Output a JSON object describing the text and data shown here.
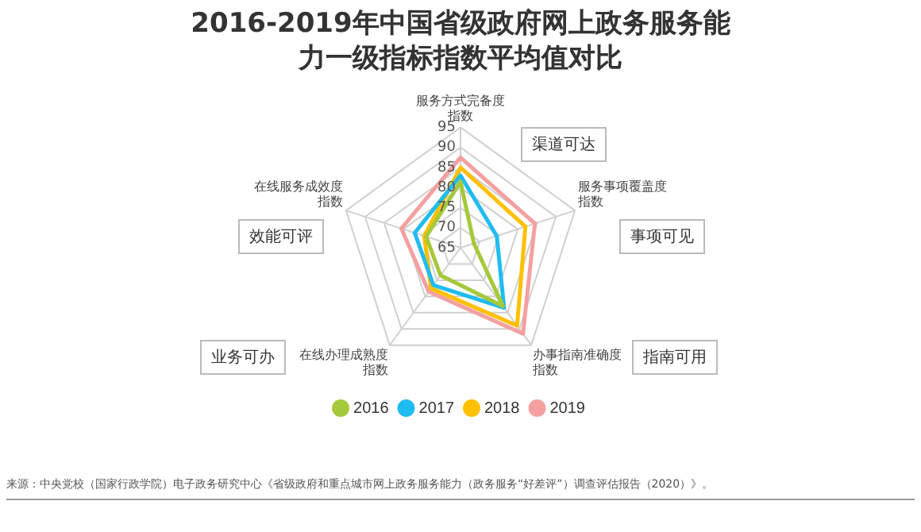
{
  "chart_data": {
    "type": "radar",
    "title": "2016-2019年中国省级政府网上政务服务能力一级指标指数平均值对比",
    "categories": [
      "服务方式完备度指数",
      "服务事项覆盖度指数",
      "办事指南准确度指数",
      "在线办理成熟度指数",
      "在线服务成效度指数"
    ],
    "series": [
      {
        "name": "2016",
        "color": "#a5c93a",
        "values": [
          81.5,
          68.5,
          83,
          73.5,
          74
        ]
      },
      {
        "name": "2017",
        "color": "#1fbcf0",
        "values": [
          83,
          74.5,
          83.5,
          76.5,
          77
        ]
      },
      {
        "name": "2018",
        "color": "#ffc000",
        "values": [
          85,
          82,
          89,
          77.5,
          74.5
        ]
      },
      {
        "name": "2019",
        "color": "#f4a0a0",
        "values": [
          87.5,
          84.5,
          91.5,
          78.5,
          80.5
        ]
      }
    ],
    "ylim": [
      65,
      95
    ],
    "yticks": [
      65,
      70,
      75,
      80,
      85,
      90,
      95
    ],
    "grid": true,
    "legend": "bottom",
    "marker": "none",
    "annotations": [
      "渠道可达",
      "事项可见",
      "指南可用",
      "业务可办",
      "效能可评",
      "来源：中央党校（国家行政学院）电子政务研究中心《省级政府和重点城市网上政务服务能力（政务服务“好差评”）调查评估报告（2020）》。"
    ]
  }
}
